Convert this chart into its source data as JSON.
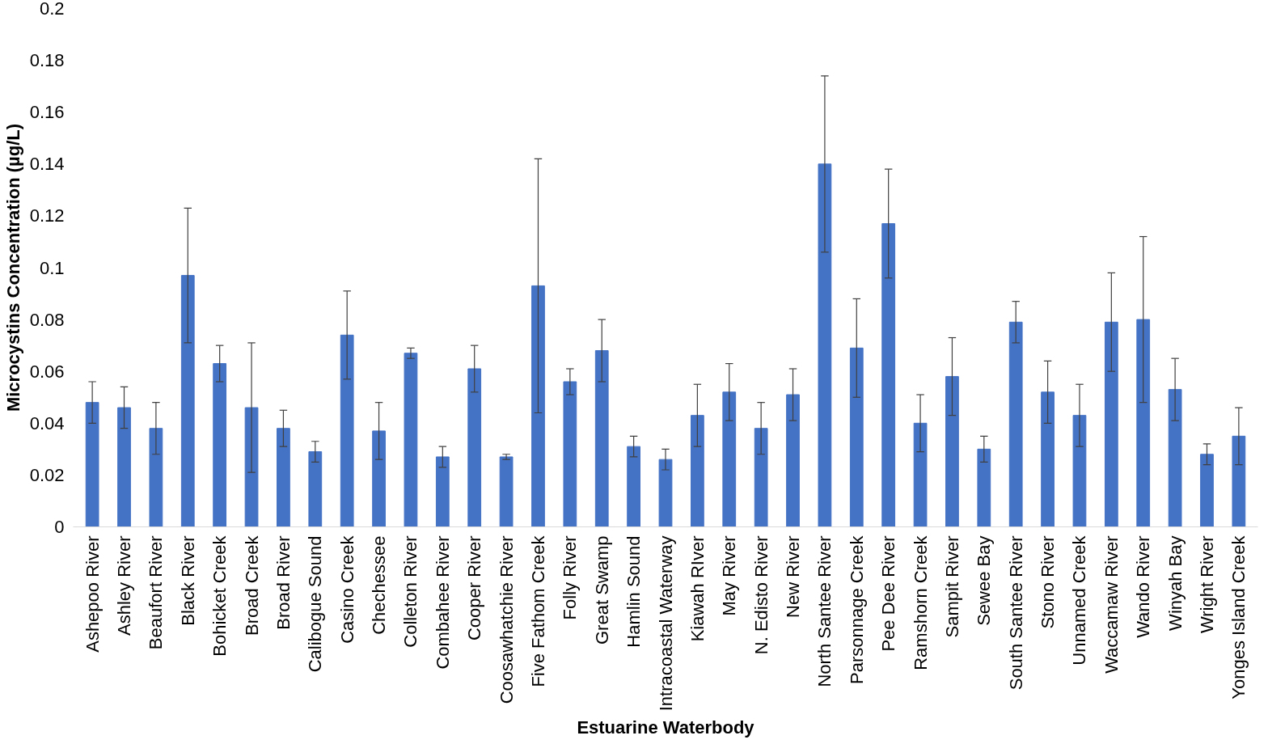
{
  "chart_data": {
    "type": "bar",
    "xlabel": "Estuarine Waterbody",
    "ylabel": "Microcystins Concentration (µg/L)",
    "categories": [
      "Ashepoo River",
      "Ashley River",
      "Beaufort River",
      "Black River",
      "Bohicket Creek",
      "Broad Creek",
      "Broad River",
      "Calibogue Sound",
      "Casino Creek",
      "Chechessee",
      "Colleton River",
      "Combahee River",
      "Cooper River",
      "Coosawhatchie River",
      "Five Fathom Creek",
      "Folly River",
      "Great Swamp",
      "Hamlin Sound",
      "Intracoastal Waterway",
      "Kiawah RIver",
      "May River",
      "N. Edisto River",
      "New River",
      "North Santee River",
      "Parsonnage Creek",
      "Pee Dee River",
      "Ramshorn Creek",
      "Sampit River",
      "Sewee Bay",
      "South Santee River",
      "Stono River",
      "Unnamed Creek",
      "Waccamaw River",
      "Wando River",
      "Winyah Bay",
      "Wright River",
      "Yonges Island Creek"
    ],
    "values": [
      0.048,
      0.046,
      0.038,
      0.097,
      0.063,
      0.046,
      0.038,
      0.029,
      0.074,
      0.037,
      0.067,
      0.027,
      0.061,
      0.027,
      0.093,
      0.056,
      0.068,
      0.031,
      0.026,
      0.043,
      0.052,
      0.038,
      0.051,
      0.14,
      0.069,
      0.117,
      0.04,
      0.058,
      0.03,
      0.079,
      0.052,
      0.043,
      0.079,
      0.08,
      0.053,
      0.028,
      0.035
    ],
    "errors": [
      0.008,
      0.008,
      0.01,
      0.026,
      0.007,
      0.025,
      0.007,
      0.004,
      0.017,
      0.011,
      0.002,
      0.004,
      0.009,
      0.001,
      0.049,
      0.005,
      0.012,
      0.004,
      0.004,
      0.012,
      0.011,
      0.01,
      0.01,
      0.034,
      0.019,
      0.021,
      0.011,
      0.015,
      0.005,
      0.008,
      0.012,
      0.012,
      0.019,
      0.032,
      0.012,
      0.004,
      0.011
    ],
    "color": "#4472c4",
    "ylim": [
      0,
      0.2
    ],
    "yticks": [
      0,
      0.02,
      0.04,
      0.06,
      0.08,
      0.1,
      0.12,
      0.14,
      0.16,
      0.18,
      0.2
    ],
    "grid": false
  }
}
